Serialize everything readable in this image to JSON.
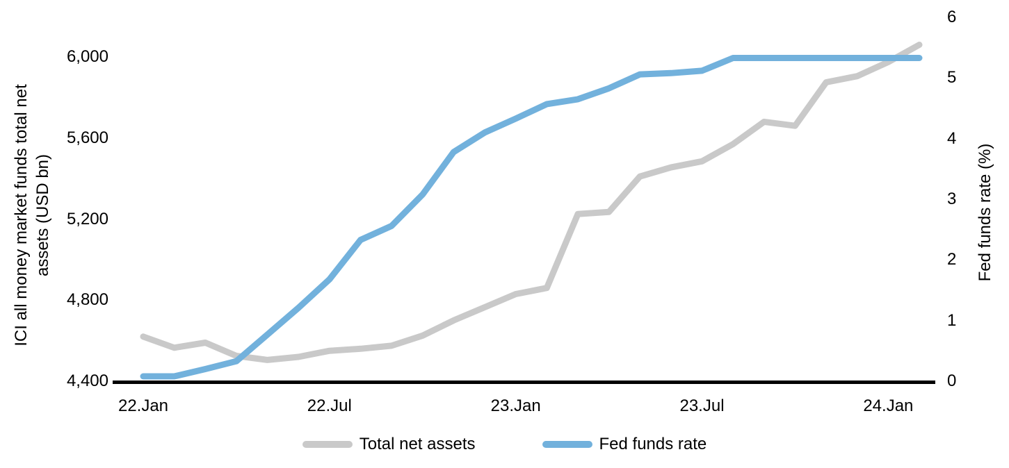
{
  "chart_data": {
    "type": "line",
    "title": "",
    "ylabel_left": "ICI all money market funds total net assets (USD bn)",
    "ylabel_left_lines": [
      "ICI all money market funds total net",
      "assets (USD bn)"
    ],
    "ylabel_right": "Fed funds rate (%)",
    "x_tick_labels": [
      "22.Jan",
      "22.Jul",
      "23.Jan",
      "23.Jul",
      "24.Jan"
    ],
    "x_tick_month_index": [
      0,
      6,
      12,
      18,
      24
    ],
    "months": [
      "2022-01",
      "2022-02",
      "2022-03",
      "2022-04",
      "2022-05",
      "2022-06",
      "2022-07",
      "2022-08",
      "2022-09",
      "2022-10",
      "2022-11",
      "2022-12",
      "2023-01",
      "2023-02",
      "2023-03",
      "2023-04",
      "2023-05",
      "2023-06",
      "2023-07",
      "2023-08",
      "2023-09",
      "2023-10",
      "2023-11",
      "2023-12",
      "2024-01",
      "2024-02"
    ],
    "y_left_ticks": [
      "4,400",
      "4,800",
      "5,200",
      "5,600",
      "6,000"
    ],
    "y_left_tick_values": [
      4400,
      4800,
      5200,
      5600,
      6000
    ],
    "y_left_range": [
      4400,
      6000
    ],
    "y_right_ticks": [
      "0",
      "1",
      "2",
      "3",
      "4",
      "5",
      "6"
    ],
    "y_right_tick_values": [
      0,
      1,
      2,
      3,
      4,
      5,
      6
    ],
    "y_right_range": [
      0,
      6
    ],
    "grid": false,
    "legend_position": "bottom",
    "series": [
      {
        "name": "Total net assets",
        "axis": "left",
        "color": "#C9C9C9",
        "values": [
          4620,
          4565,
          4590,
          4525,
          4505,
          4520,
          4550,
          4560,
          4575,
          4625,
          4700,
          4765,
          4830,
          4860,
          5225,
          5235,
          5410,
          5455,
          5485,
          5570,
          5680,
          5660,
          5875,
          5905,
          5975,
          6060
        ]
      },
      {
        "name": "Fed funds rate",
        "axis": "right",
        "color": "#72B1DC",
        "values": [
          0.08,
          0.08,
          0.2,
          0.33,
          0.77,
          1.21,
          1.68,
          2.33,
          2.56,
          3.08,
          3.78,
          4.1,
          4.33,
          4.57,
          4.65,
          4.83,
          5.06,
          5.08,
          5.12,
          5.33,
          5.33,
          5.33,
          5.33,
          5.33,
          5.33,
          5.33
        ]
      }
    ],
    "colors": {
      "axis_line": "#000000",
      "text": "#000000",
      "background": "#ffffff"
    }
  }
}
